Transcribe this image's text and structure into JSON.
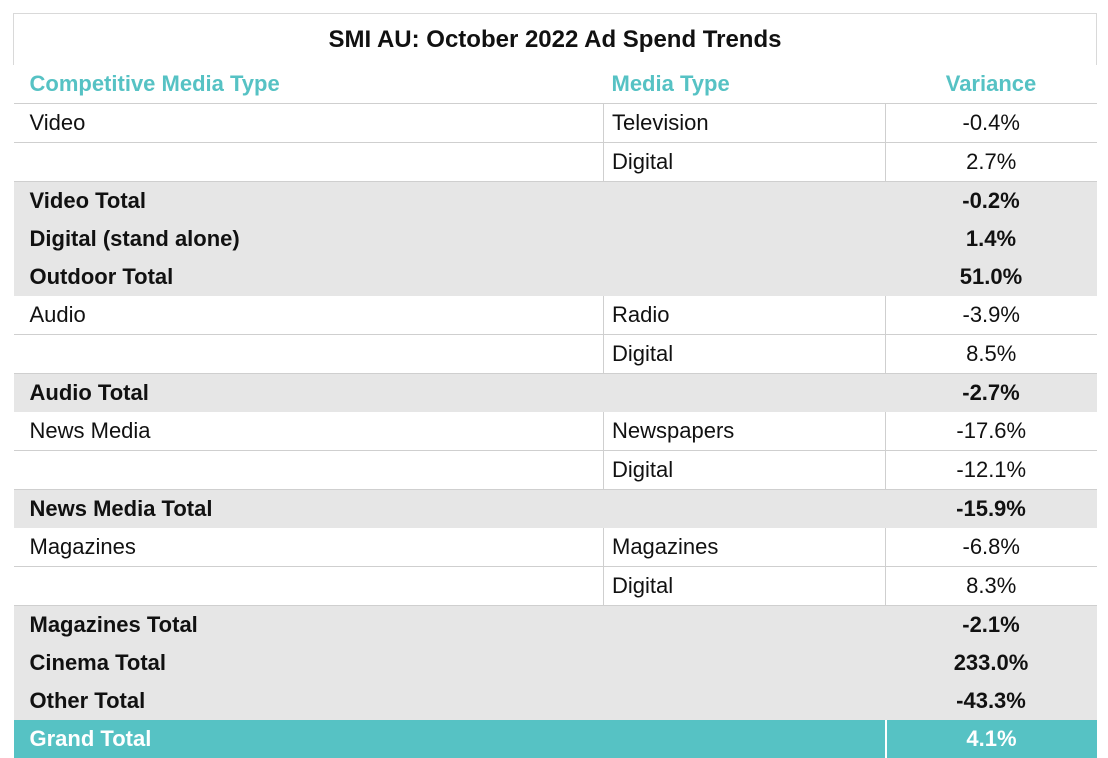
{
  "title": "SMI AU: October 2022 Ad Spend Trends",
  "headers": {
    "competitive_media_type": "Competitive Media Type",
    "media_type": "Media Type",
    "variance": "Variance"
  },
  "rows": [
    {
      "kind": "detail",
      "competitive": "Video",
      "media": "Television",
      "variance": "-0.4%"
    },
    {
      "kind": "detail",
      "competitive": "",
      "media": "Digital",
      "variance": "2.7%"
    },
    {
      "kind": "total",
      "competitive": "Video Total",
      "media": "",
      "variance": "-0.2%"
    },
    {
      "kind": "total",
      "competitive": "Digital (stand alone)",
      "media": "",
      "variance": "1.4%"
    },
    {
      "kind": "total",
      "competitive": "Outdoor Total",
      "media": "",
      "variance": "51.0%"
    },
    {
      "kind": "detail",
      "competitive": "Audio",
      "media": "Radio",
      "variance": "-3.9%"
    },
    {
      "kind": "detail",
      "competitive": "",
      "media": "Digital",
      "variance": "8.5%"
    },
    {
      "kind": "total",
      "competitive": "Audio Total",
      "media": "",
      "variance": "-2.7%"
    },
    {
      "kind": "detail",
      "competitive": "News Media",
      "media": "Newspapers",
      "variance": "-17.6%"
    },
    {
      "kind": "detail",
      "competitive": "",
      "media": "Digital",
      "variance": "-12.1%"
    },
    {
      "kind": "total",
      "competitive": "News Media Total",
      "media": "",
      "variance": "-15.9%"
    },
    {
      "kind": "detail",
      "competitive": "Magazines",
      "media": "Magazines",
      "variance": "-6.8%"
    },
    {
      "kind": "detail",
      "competitive": "",
      "media": "Digital",
      "variance": "8.3%"
    },
    {
      "kind": "total",
      "competitive": "Magazines Total",
      "media": "",
      "variance": "-2.1%"
    },
    {
      "kind": "total",
      "competitive": "Cinema Total",
      "media": "",
      "variance": "233.0%"
    },
    {
      "kind": "total",
      "competitive": "Other Total",
      "media": "",
      "variance": "-43.3%"
    }
  ],
  "grand_total": {
    "label": "Grand Total",
    "variance": "4.1%"
  },
  "colors": {
    "accent": "#56c2c4",
    "total_row_bg": "#e6e6e6",
    "grid": "#cfcfcf"
  }
}
